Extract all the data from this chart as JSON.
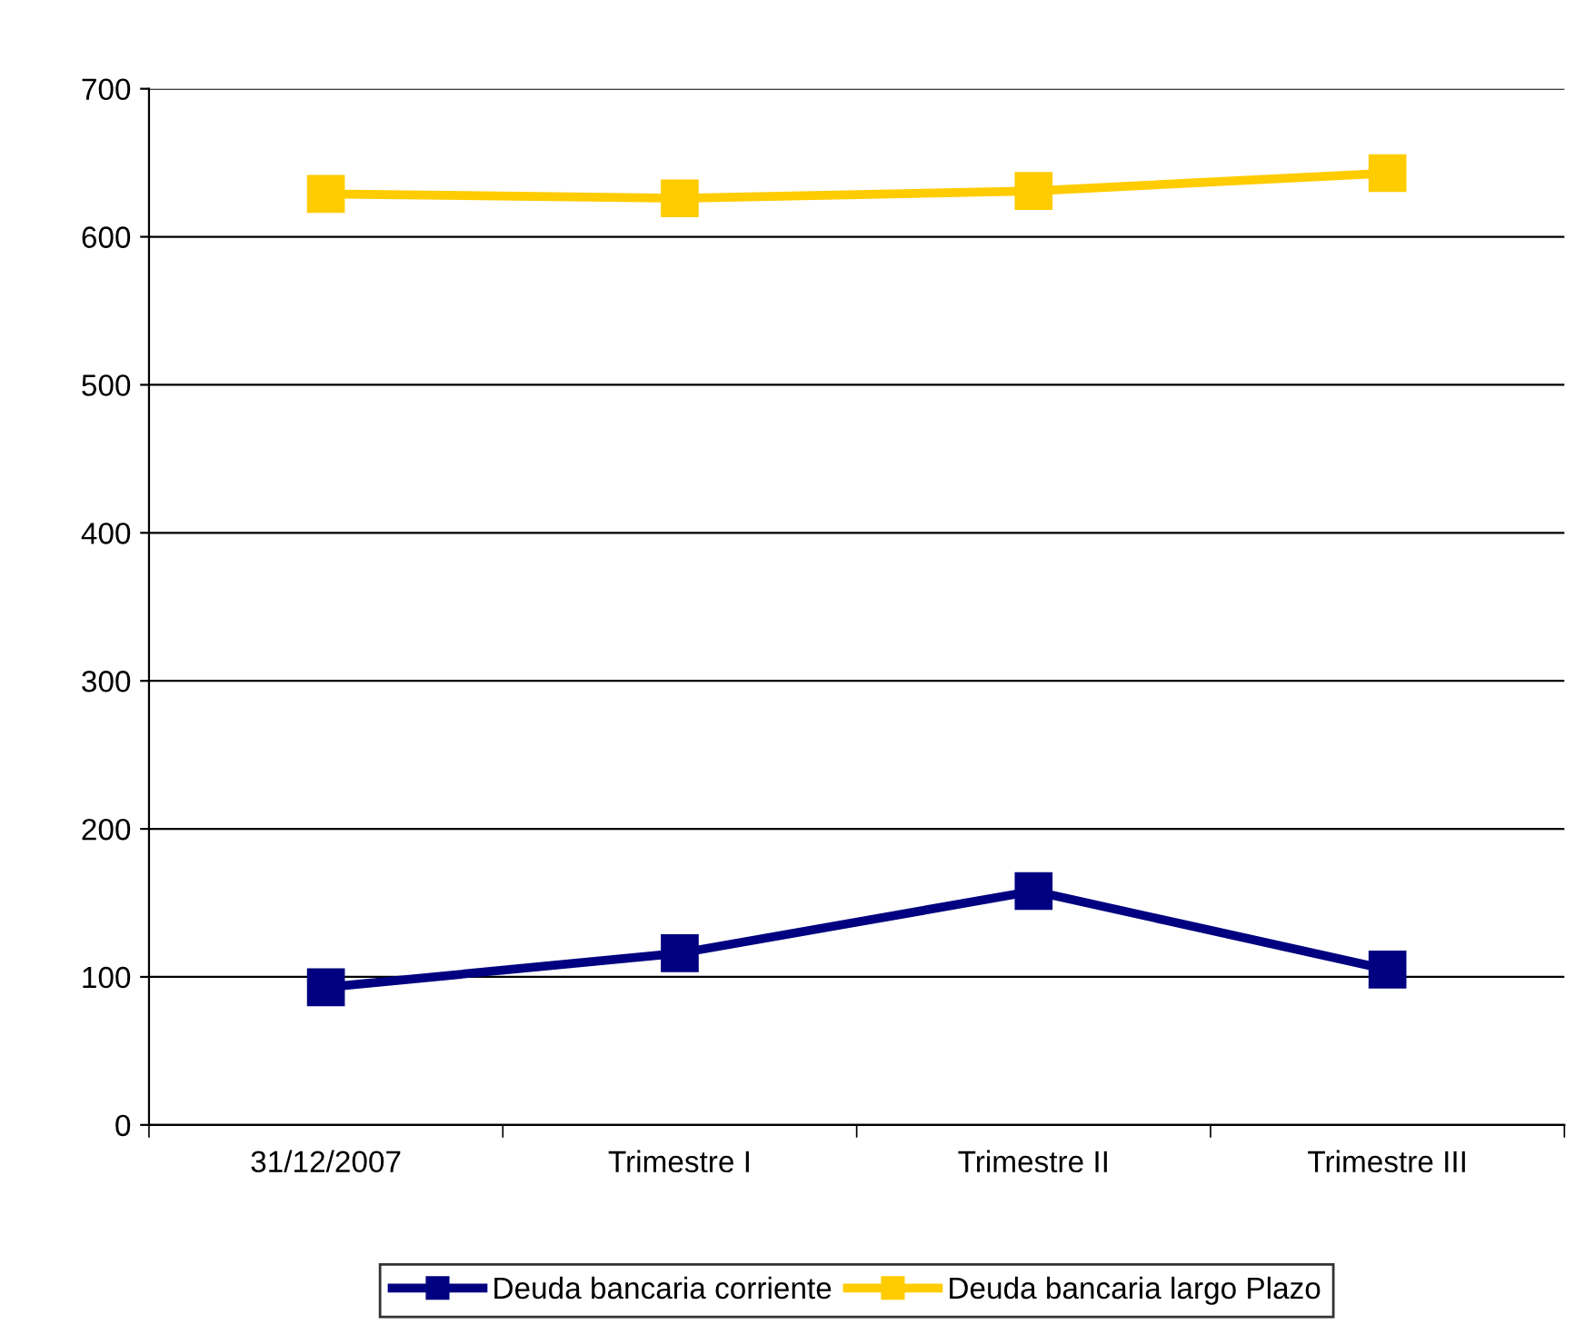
{
  "chart_data": {
    "type": "line",
    "categories": [
      "31/12/2007",
      "Trimestre I",
      "Trimestre II",
      "Trimestre III"
    ],
    "series": [
      {
        "name": "Deuda bancaria corriente",
        "color": "#000080",
        "values": [
          93,
          116,
          158,
          105
        ]
      },
      {
        "name": "Deuda bancaria largo Plazo",
        "color": "#ffcc00",
        "values": [
          629,
          626,
          631,
          643
        ]
      }
    ],
    "ylim": [
      0,
      700
    ],
    "yticks": [
      0,
      100,
      200,
      300,
      400,
      500,
      600,
      700
    ],
    "grid": "y",
    "legend": "bottom",
    "marker": "square",
    "line_style": "solid"
  }
}
